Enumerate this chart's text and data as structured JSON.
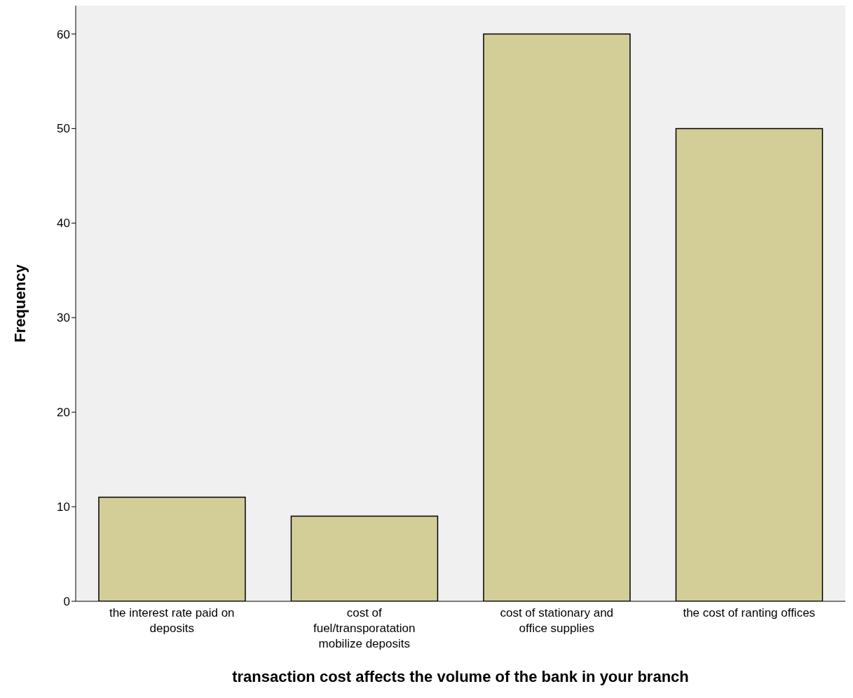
{
  "chart_data": {
    "type": "bar",
    "xlabel": "transaction cost affects the volume of the bank in your branch",
    "ylabel": "Frequency",
    "categories": [
      "the interest rate paid on deposits",
      "cost of fuel/transporatation mobilize deposits",
      "cost of stationary and office supplies",
      "the cost of ranting offices"
    ],
    "values": [
      11,
      9,
      60,
      50
    ],
    "color": "#d3ce97",
    "ylim": [
      0,
      63
    ],
    "yticks": [
      0,
      10,
      20,
      30,
      40,
      50,
      60
    ],
    "grid": false
  }
}
